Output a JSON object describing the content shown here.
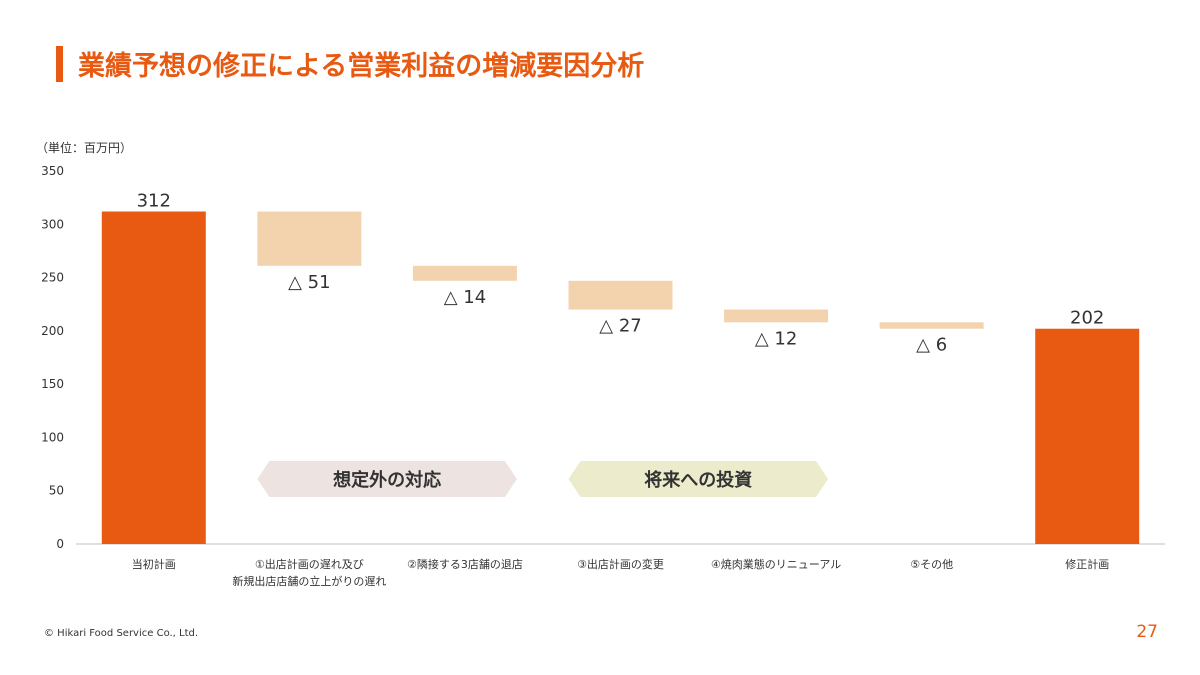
{
  "header": {
    "title": "業績予想の修正による営業利益の増減要因分析"
  },
  "unit_label": "（単位：百万円）",
  "footer": {
    "copyright": "© Hikari Food Service Co., Ltd.",
    "page_number": "27"
  },
  "colors": {
    "accent": "#E85A12",
    "delta": "#F3D3AE",
    "group1": "#EDE4E1",
    "group2": "#ECEBCB"
  },
  "chart_data": {
    "type": "bar",
    "subtype": "waterfall",
    "ylim": [
      0,
      350
    ],
    "yticks": [
      "0",
      "50",
      "100",
      "150",
      "200",
      "250",
      "300",
      "350"
    ],
    "grid": false,
    "categories": [
      [
        "当初計画"
      ],
      [
        "①出店計画の遅れ及び",
        "新規出店店舗の立上がりの遅れ"
      ],
      [
        "②隣接する3店舗の退店"
      ],
      [
        "③出店計画の変更"
      ],
      [
        "④焼肉業態のリニューアル"
      ],
      [
        "⑤その他"
      ],
      [
        "修正計画"
      ]
    ],
    "bars": [
      {
        "kind": "total",
        "start": 0,
        "end": 312,
        "label": "312"
      },
      {
        "kind": "delta",
        "start": 312,
        "end": 261,
        "label": "△ 51"
      },
      {
        "kind": "delta",
        "start": 261,
        "end": 247,
        "label": "△ 14"
      },
      {
        "kind": "delta",
        "start": 247,
        "end": 220,
        "label": "△ 27"
      },
      {
        "kind": "delta",
        "start": 220,
        "end": 208,
        "label": "△ 12"
      },
      {
        "kind": "delta",
        "start": 208,
        "end": 202,
        "label": "△ 6"
      },
      {
        "kind": "total",
        "start": 0,
        "end": 202,
        "label": "202"
      }
    ],
    "groups": [
      {
        "label": "想定外の対応",
        "from": 1,
        "to": 2,
        "color": "#EDE4E1"
      },
      {
        "label": "将来への投資",
        "from": 3,
        "to": 4,
        "color": "#ECEBCB"
      }
    ]
  }
}
